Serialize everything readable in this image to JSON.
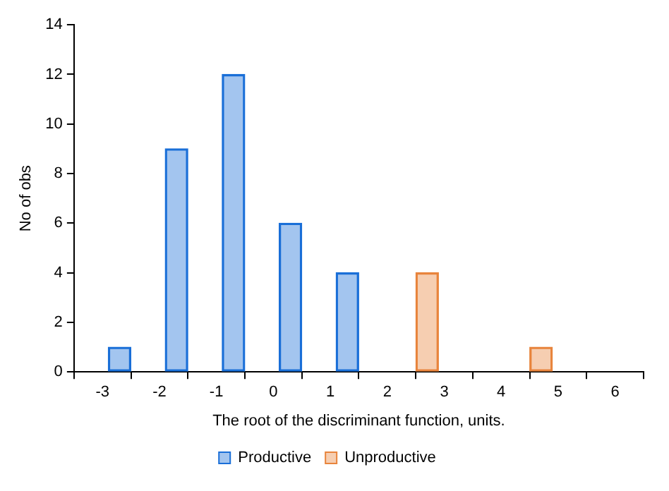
{
  "chart_data": {
    "type": "bar",
    "xlabel": "The root of the discriminant function, units.",
    "ylabel": "No of obs",
    "series": [
      {
        "name": "Productive",
        "color": "#1a6fd8",
        "x": [
          -2.7,
          -1.7,
          -0.7,
          0.3,
          1.3
        ],
        "values": [
          1,
          9,
          12,
          6,
          4
        ]
      },
      {
        "name": "Unproductive",
        "color": "#e8843c",
        "x": [
          2.7,
          4.7
        ],
        "values": [
          4,
          1
        ]
      }
    ],
    "xlim": [
      -3.5,
      6.5
    ],
    "xticks": [
      -3,
      -2,
      -1,
      0,
      1,
      2,
      3,
      4,
      5,
      6
    ],
    "ylim": [
      0,
      14
    ],
    "yticks": [
      0,
      2,
      4,
      6,
      8,
      10,
      12,
      14
    ],
    "grid": false,
    "legend": "bottom"
  }
}
